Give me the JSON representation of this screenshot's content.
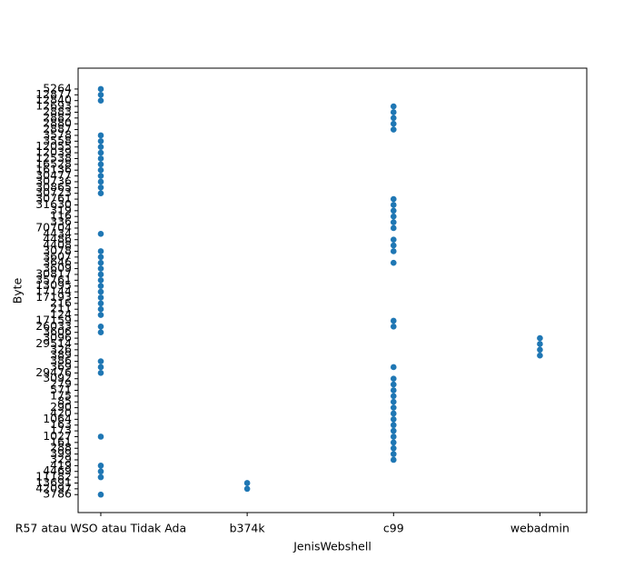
{
  "chart_data": {
    "type": "scatter",
    "x_label": "JenisWebshell",
    "y_label": "Byte",
    "color": "#1f77b4",
    "categories": [
      "R57 atau WSO atau Tidak Ada",
      "b374k",
      "c99",
      "webadmin"
    ],
    "xlim": [
      -0.155,
      3.32
    ],
    "ylim": [
      -3.1,
      73.6
    ],
    "points": [
      [
        0,
        3,
        4,
        5,
        10,
        21,
        22,
        23,
        28,
        29,
        31,
        32,
        33,
        34,
        35,
        36,
        37,
        38,
        39,
        40,
        41,
        42,
        45,
        52,
        53,
        54,
        55,
        56,
        57,
        58,
        59,
        60,
        61,
        62,
        68,
        69,
        70
      ],
      [
        1,
        2
      ],
      [
        6,
        7,
        8,
        9,
        10,
        11,
        12,
        13,
        14,
        15,
        16,
        17,
        18,
        19,
        20,
        22,
        29,
        30,
        40,
        42,
        43,
        44,
        46,
        47,
        48,
        49,
        50,
        51,
        63,
        64,
        65,
        66,
        67
      ],
      [
        24,
        25,
        26,
        27
      ]
    ],
    "yticks": [
      {
        "value": 0,
        "label": "3786"
      },
      {
        "value": 1,
        "label": "42097"
      },
      {
        "value": 2,
        "label": "13691"
      },
      {
        "value": 3,
        "label": "11182"
      },
      {
        "value": 4,
        "label": "4469"
      },
      {
        "value": 5,
        "label": "419"
      },
      {
        "value": 6,
        "label": "329"
      },
      {
        "value": 7,
        "label": "399"
      },
      {
        "value": 8,
        "label": "288"
      },
      {
        "value": 9,
        "label": "161"
      },
      {
        "value": 10,
        "label": "1027"
      },
      {
        "value": 11,
        "label": "173"
      },
      {
        "value": 12,
        "label": "163"
      },
      {
        "value": 13,
        "label": "1064"
      },
      {
        "value": 14,
        "label": "420"
      },
      {
        "value": 15,
        "label": "290"
      },
      {
        "value": 16,
        "label": "85"
      },
      {
        "value": 17,
        "label": "175"
      },
      {
        "value": 18,
        "label": "571"
      },
      {
        "value": 19,
        "label": "279"
      },
      {
        "value": 20,
        "label": "3092"
      },
      {
        "value": 21,
        "label": "29476"
      },
      {
        "value": 22,
        "label": "369"
      },
      {
        "value": 23,
        "label": "386"
      },
      {
        "value": 24,
        "label": "389"
      },
      {
        "value": 25,
        "label": "326"
      },
      {
        "value": 26,
        "label": "29514"
      },
      {
        "value": 27,
        "label": "3096"
      },
      {
        "value": 28,
        "label": "3606"
      },
      {
        "value": 29,
        "label": "26033"
      },
      {
        "value": 30,
        "label": "17159"
      },
      {
        "value": 31,
        "label": "124"
      },
      {
        "value": 32,
        "label": "211"
      },
      {
        "value": 33,
        "label": "216"
      },
      {
        "value": 34,
        "label": "17193"
      },
      {
        "value": 35,
        "label": "17144"
      },
      {
        "value": 36,
        "label": "13095"
      },
      {
        "value": 37,
        "label": "35761"
      },
      {
        "value": 38,
        "label": "30817"
      },
      {
        "value": 39,
        "label": "3609"
      },
      {
        "value": 40,
        "label": "3646"
      },
      {
        "value": 41,
        "label": "3607"
      },
      {
        "value": 42,
        "label": "3078"
      },
      {
        "value": 43,
        "label": "4408"
      },
      {
        "value": 44,
        "label": "4486"
      },
      {
        "value": 45,
        "label": "4434"
      },
      {
        "value": 46,
        "label": "70704"
      },
      {
        "value": 47,
        "label": "336"
      },
      {
        "value": 48,
        "label": "116"
      },
      {
        "value": 49,
        "label": "319"
      },
      {
        "value": 50,
        "label": "31630"
      },
      {
        "value": 51,
        "label": "30761"
      },
      {
        "value": 52,
        "label": "30723"
      },
      {
        "value": 53,
        "label": "30865"
      },
      {
        "value": 54,
        "label": "30736"
      },
      {
        "value": 55,
        "label": "30477"
      },
      {
        "value": 56,
        "label": "16136"
      },
      {
        "value": 57,
        "label": "16528"
      },
      {
        "value": 58,
        "label": "12538"
      },
      {
        "value": 59,
        "label": "12039"
      },
      {
        "value": 60,
        "label": "12055"
      },
      {
        "value": 61,
        "label": "3558"
      },
      {
        "value": 62,
        "label": "3578"
      },
      {
        "value": 63,
        "label": "2887"
      },
      {
        "value": 64,
        "label": "2880"
      },
      {
        "value": 65,
        "label": "2882"
      },
      {
        "value": 66,
        "label": "2883"
      },
      {
        "value": 67,
        "label": "12693"
      },
      {
        "value": 68,
        "label": "12840"
      },
      {
        "value": 69,
        "label": "12877"
      },
      {
        "value": 70,
        "label": "5264"
      }
    ]
  }
}
